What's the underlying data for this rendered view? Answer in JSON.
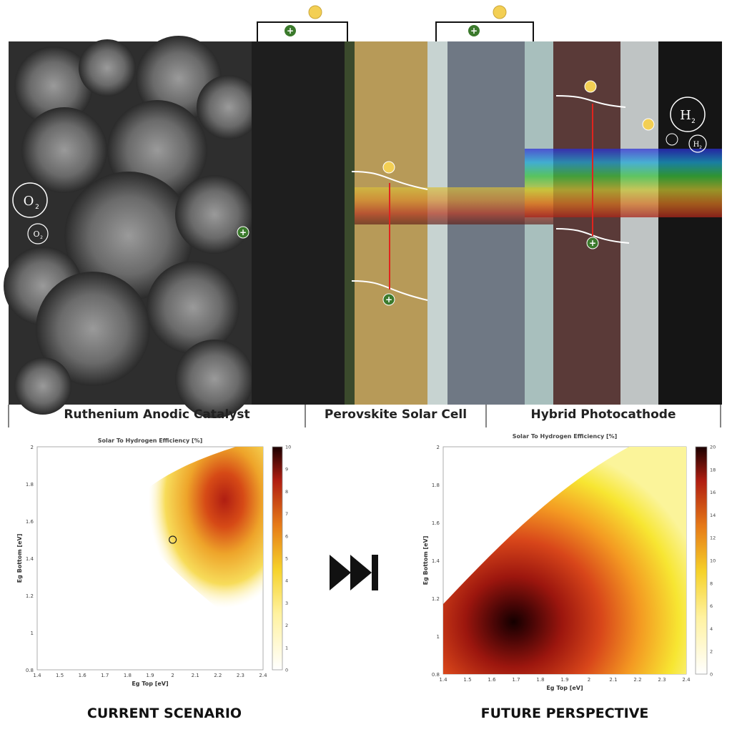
{
  "top_panel": {
    "sections": [
      {
        "label": "Ruthenium Anodic Catalyst"
      },
      {
        "label": "Perovskite Solar Cell"
      },
      {
        "label": "Hybrid Photocathode"
      }
    ],
    "molecules": {
      "o2_large": "O",
      "o2_small": "O",
      "h2_large": "H",
      "h2_small": "H",
      "sub": "2"
    },
    "charge_symbol": "+"
  },
  "play_icon": "fast-forward-end-icon",
  "bottom_titles": {
    "left": "CURRENT SCENARIO",
    "right": "FUTURE PERSPECTIVE"
  },
  "chart_data": [
    {
      "type": "heatmap",
      "title": "Solar To Hydrogen Efficiency [%]",
      "xlabel": "Eg Top [eV]",
      "ylabel": "Eg Bottom [eV]",
      "xlim": [
        1.4,
        2.4
      ],
      "ylim": [
        0.8,
        2.0
      ],
      "x_ticks": [
        "1.4",
        "1.5",
        "1.6",
        "1.7",
        "1.8",
        "1.9",
        "2",
        "2.1",
        "2.2",
        "2.3",
        "2.4"
      ],
      "y_ticks": [
        "0.8",
        "1",
        "1.2",
        "1.4",
        "1.6",
        "1.8",
        "2"
      ],
      "colorbar_range": [
        0,
        10
      ],
      "colorbar_ticks": [
        "0",
        "1",
        "2",
        "3",
        "4",
        "5",
        "6",
        "7",
        "8",
        "9",
        "10"
      ],
      "peak": {
        "x": 2.1,
        "y": 1.65,
        "value": 9
      },
      "marker": {
        "x": 2.0,
        "y": 1.5
      }
    },
    {
      "type": "heatmap",
      "title": "Solar To Hydrogen Efficiency [%]",
      "xlabel": "Eg Top [eV]",
      "ylabel": "Eg Bottom [eV]",
      "xlim": [
        1.4,
        2.4
      ],
      "ylim": [
        0.8,
        2.0
      ],
      "x_ticks": [
        "1.4",
        "1.5",
        "1.6",
        "1.7",
        "1.8",
        "1.9",
        "2",
        "2.1",
        "2.2",
        "2.3",
        "2.4"
      ],
      "y_ticks": [
        "0.8",
        "1",
        "1.2",
        "1.4",
        "1.6",
        "1.8",
        "2"
      ],
      "colorbar_range": [
        0,
        20
      ],
      "colorbar_ticks": [
        "0",
        "2",
        "4",
        "6",
        "8",
        "10",
        "12",
        "14",
        "16",
        "18",
        "20"
      ],
      "peak": {
        "x": 1.7,
        "y": 1.07,
        "value": 20
      }
    }
  ]
}
